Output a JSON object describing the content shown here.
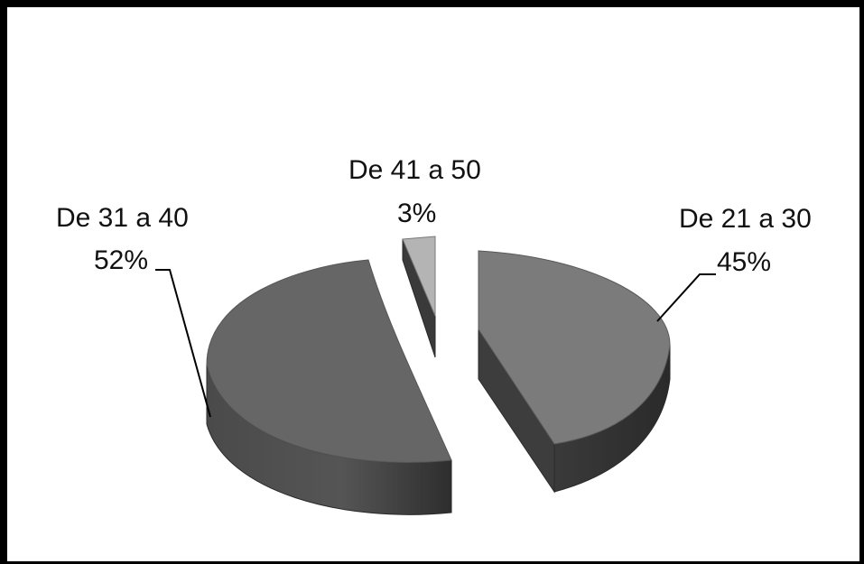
{
  "chart_data": {
    "type": "pie",
    "three_d": true,
    "exploded": true,
    "title": "",
    "slices": [
      {
        "label": "De 21 a 30",
        "percent_label": "45%",
        "value": 45,
        "color": "#7b7b7b"
      },
      {
        "label": "De 31 a 40",
        "percent_label": "52%",
        "value": 52,
        "color": "#666666"
      },
      {
        "label": "De 41 a 50",
        "percent_label": "3%",
        "value": 3,
        "color": "#b4b4b4"
      }
    ]
  }
}
